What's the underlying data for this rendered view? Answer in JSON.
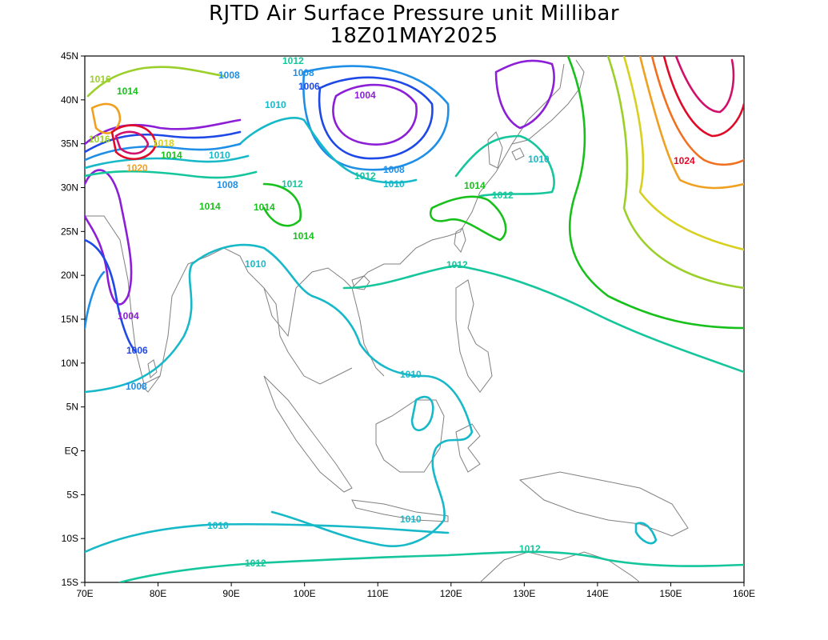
{
  "title_line1": "RJTD Air Surface Pressure unit Millibar",
  "title_line2": "18Z01MAY2025",
  "lon_labels": [
    "70E",
    "80E",
    "90E",
    "100E",
    "110E",
    "120E",
    "130E",
    "140E",
    "150E",
    "160E"
  ],
  "lat_labels": [
    "45N",
    "40N",
    "35N",
    "30N",
    "25N",
    "20N",
    "15N",
    "10N",
    "5N",
    "EQ",
    "5S",
    "10S",
    "15S"
  ],
  "contour_labels": [
    {
      "text": "1016",
      "color": "#9bcf2a"
    },
    {
      "text": "1014",
      "color": "#17c01a"
    },
    {
      "text": "1012",
      "color": "#15c69c"
    },
    {
      "text": "1008",
      "color": "#1e8ee6"
    },
    {
      "text": "1006",
      "color": "#1e49e6"
    },
    {
      "text": "1004",
      "color": "#8b1ed6"
    },
    {
      "text": "1010",
      "color": "#17b9c8"
    },
    {
      "text": "1024",
      "color": "#e00a28"
    },
    {
      "text": "1020",
      "color": "#f0a020"
    },
    {
      "text": "1018",
      "color": "#d8d020"
    }
  ],
  "colors": {
    "coast": "#808080",
    "c1004": "#8b1ed6",
    "c1006": "#1e49e6",
    "c1008": "#1e8ee6",
    "c1010": "#17b9c8",
    "c1012": "#15c69c",
    "c1014": "#17c01a",
    "c1016": "#9bcf2a",
    "c1018": "#d8d020",
    "c1020": "#f0a020",
    "c1022": "#f07020",
    "c1024": "#e00a28",
    "c1026": "#d0106a"
  }
}
